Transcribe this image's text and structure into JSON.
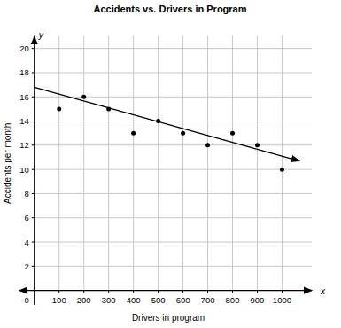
{
  "chart_data": {
    "type": "scatter",
    "title": "Accidents vs. Drivers in Program",
    "x_label": "Drivers in program",
    "y_label": "Accidents per month",
    "x_axis_name": "x",
    "y_axis_name": "y",
    "xlim": [
      -60,
      1120
    ],
    "ylim": [
      -1.2,
      21
    ],
    "xticks": [
      100,
      200,
      300,
      400,
      500,
      600,
      700,
      800,
      900,
      1000
    ],
    "yticks": [
      0,
      2,
      4,
      6,
      8,
      10,
      12,
      14,
      16,
      18,
      20
    ],
    "grid": true,
    "series": [
      {
        "type": "scatter",
        "color": "#000000",
        "marker": "circle",
        "x": [
          100,
          200,
          300,
          400,
          500,
          600,
          700,
          800,
          900,
          1000
        ],
        "values": [
          15,
          16,
          15,
          13,
          14,
          13,
          12,
          13,
          12,
          10
        ]
      },
      {
        "type": "line",
        "color": "#000000",
        "line_style": "arrow",
        "x": [
          0,
          1070
        ],
        "values": [
          16.8,
          10.7
        ]
      }
    ]
  }
}
